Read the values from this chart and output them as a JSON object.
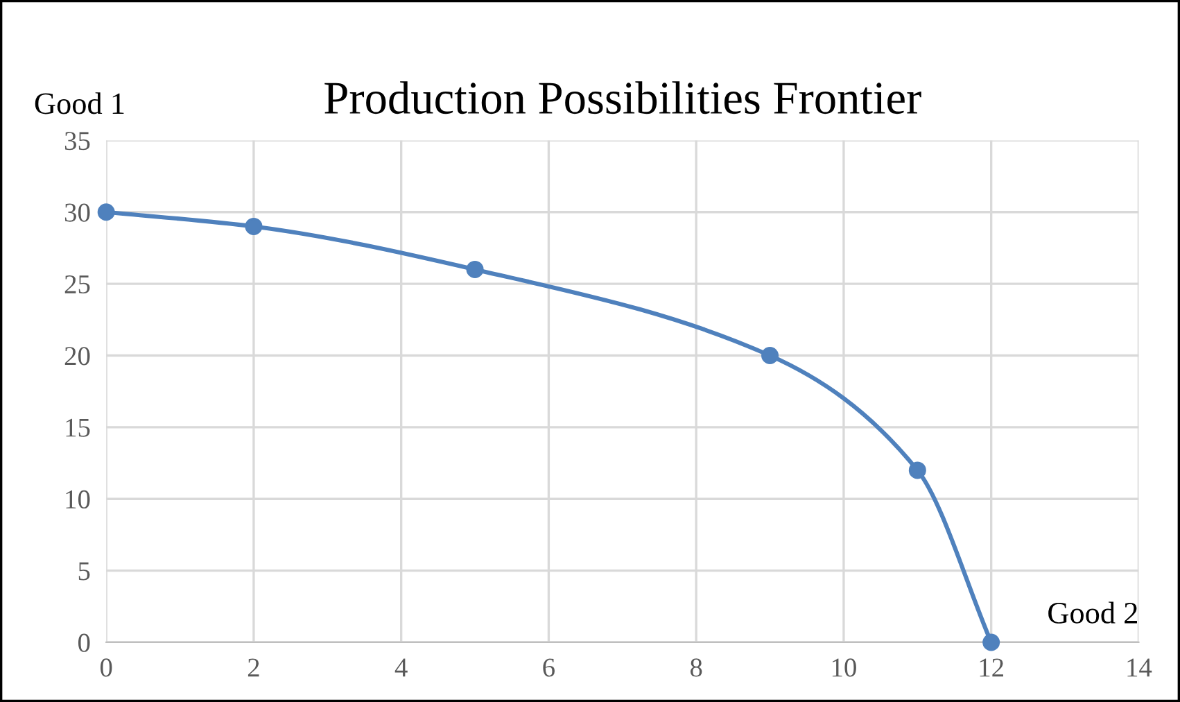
{
  "chart_data": {
    "type": "line",
    "title": "Production Possibilities Frontier",
    "xlabel": "Good 2",
    "ylabel": "Good 1",
    "x": [
      0,
      2,
      5,
      9,
      11,
      12
    ],
    "series": [
      {
        "color": "#4f81bd",
        "values": [
          30,
          29,
          26,
          20,
          12,
          0
        ]
      }
    ],
    "xlim": [
      0,
      14
    ],
    "xticks": [
      0,
      2,
      4,
      6,
      8,
      10,
      12,
      14
    ],
    "ylim": [
      0,
      35
    ],
    "yticks": [
      0,
      5,
      10,
      15,
      20,
      25,
      30,
      35
    ],
    "grid": true,
    "marker": "circle",
    "line_style": "solid",
    "legend": false
  }
}
